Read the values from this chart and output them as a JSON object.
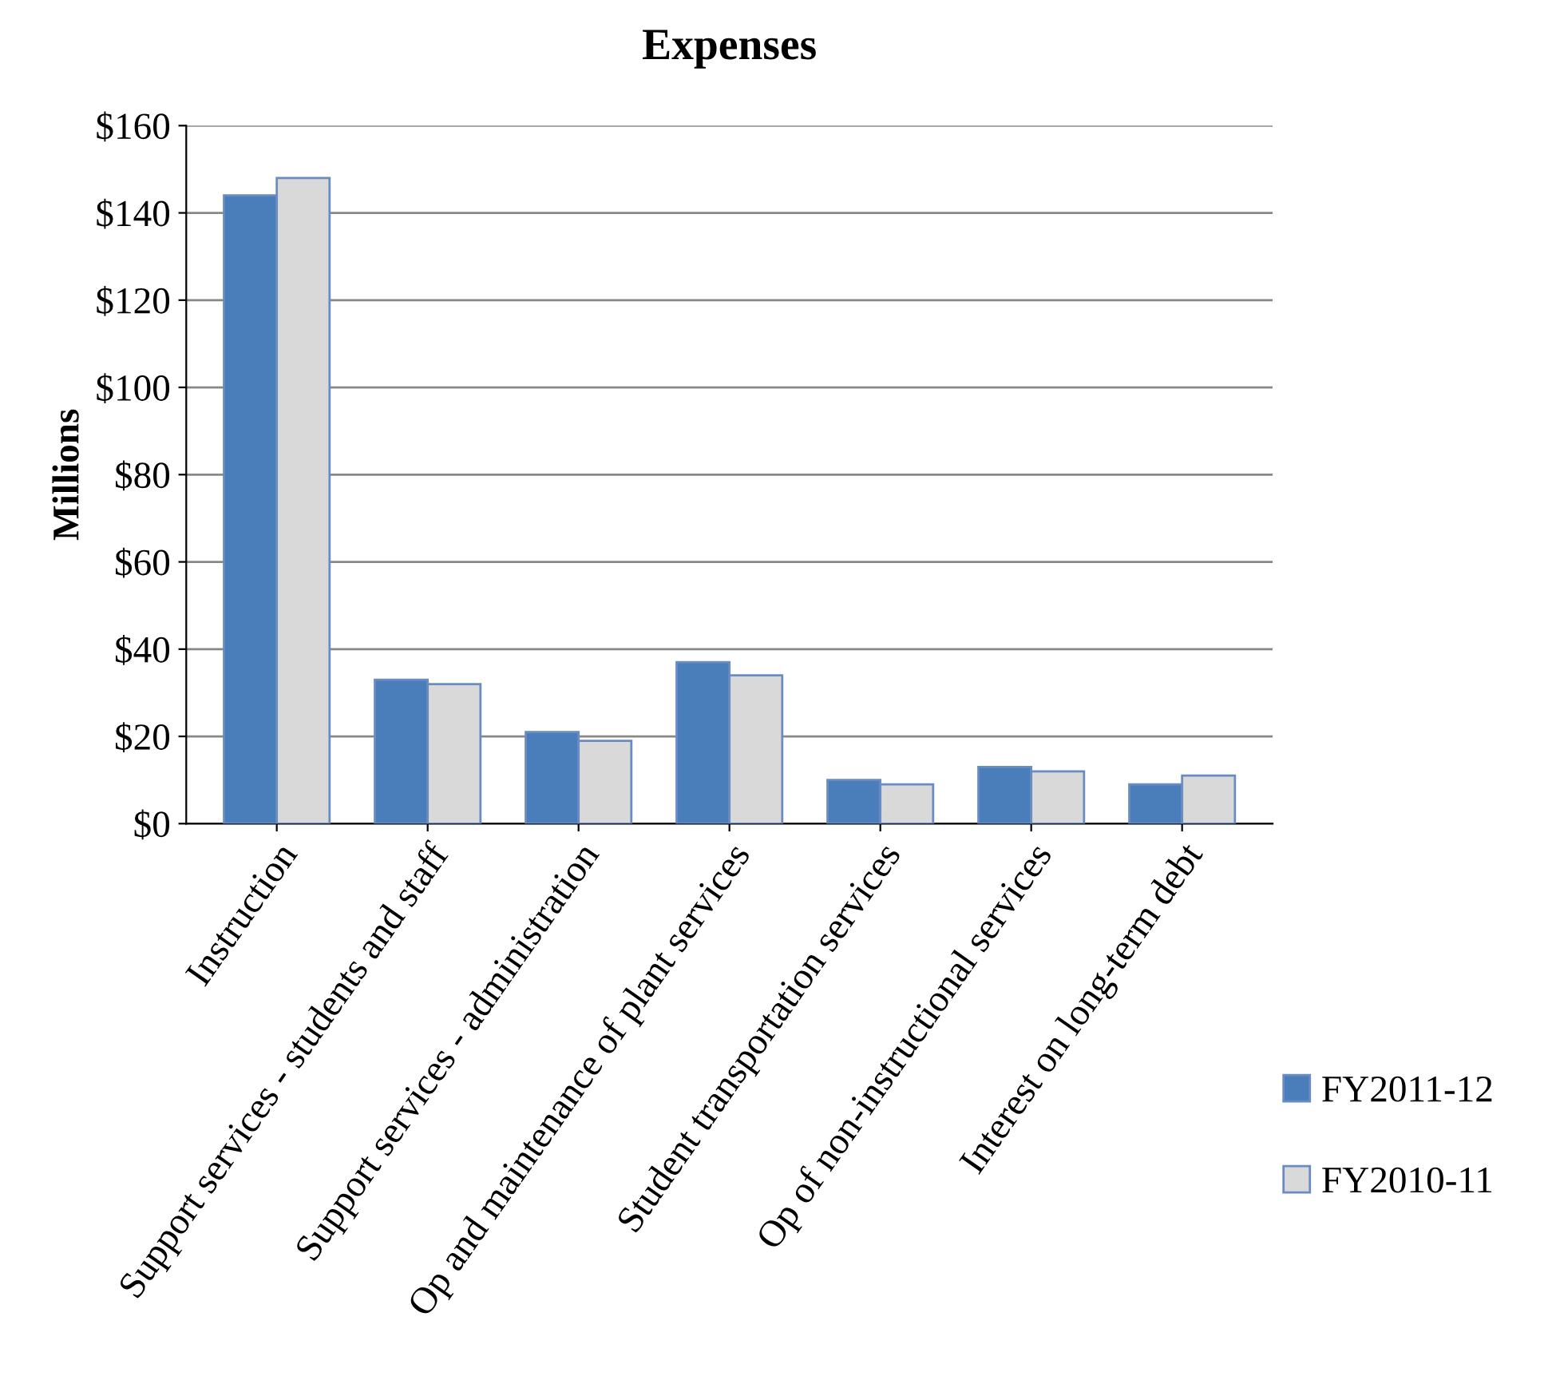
{
  "chart_data": {
    "type": "bar",
    "title": "Expenses",
    "ylabel": "Millions",
    "categories": [
      "Instruction",
      "Support services - students and staff",
      "Support services - administration",
      "Op and maintenance of plant services",
      "Student transportation services",
      "Op of non-instructional services",
      "Interest on long-term debt"
    ],
    "series": [
      {
        "name": "FY2011-12",
        "color": "#4a7ebb",
        "values": [
          144,
          33,
          21,
          37,
          10,
          13,
          9
        ]
      },
      {
        "name": "FY2010-11",
        "color": "#d9d9d9",
        "values": [
          148,
          32,
          19,
          34,
          9,
          12,
          11
        ]
      }
    ],
    "ylim": [
      0,
      160
    ],
    "yticks": [
      {
        "value": 0,
        "label": "$0"
      },
      {
        "value": 20,
        "label": "$20"
      },
      {
        "value": 40,
        "label": "$40"
      },
      {
        "value": 60,
        "label": "$60"
      },
      {
        "value": 80,
        "label": "$80"
      },
      {
        "value": 100,
        "label": "$100"
      },
      {
        "value": 120,
        "label": "$120"
      },
      {
        "value": 140,
        "label": "$140"
      },
      {
        "value": 160,
        "label": "$160"
      }
    ],
    "grid": "y",
    "legend": "right"
  }
}
